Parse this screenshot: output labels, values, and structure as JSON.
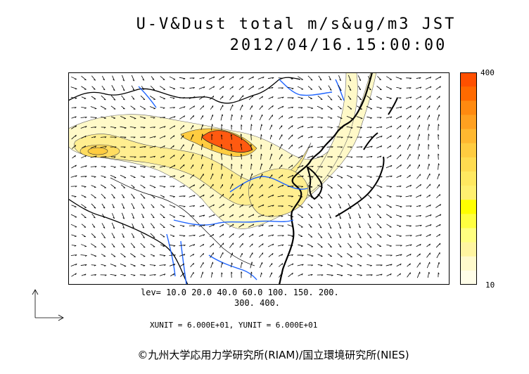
{
  "title": {
    "line1": "U-V&Dust total m/s&ug/m3 JST",
    "line2": "2012/04/16.15:00:00"
  },
  "colorbar": {
    "max_label": "400",
    "min_label": "10",
    "colors": [
      "#ff5000",
      "#ff6a00",
      "#ff8a10",
      "#ffa020",
      "#ffb830",
      "#ffcc40",
      "#ffdc50",
      "#ffe860",
      "#fff070",
      "#ffff00",
      "#ffff40",
      "#ffff80",
      "#fff5a0",
      "#fffacc",
      "#fffde8"
    ]
  },
  "levels": {
    "line1": "lev= 10.0 20.0 40.0 60.0 100. 150. 200.",
    "line2": "300. 400."
  },
  "units_line": "XUNIT = 6.000E+01, YUNIT = 6.000E+01",
  "copyright": "©九州大学応用力学研究所(RIAM)/国立環境研究所(NIES)",
  "map_colors": {
    "background": "#ffffff",
    "coast": "#000000",
    "rivers": "#1e64ff",
    "dust_light": "#fff9c8",
    "dust_mid": "#ffee90",
    "dust_high": "#ffcc40",
    "dust_peak": "#ff5a10"
  }
}
